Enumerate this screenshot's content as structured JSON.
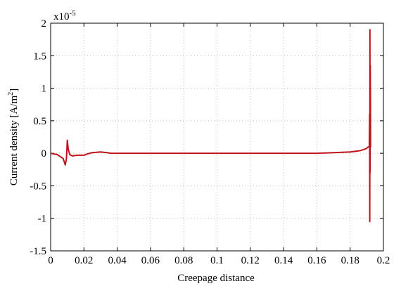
{
  "chart_data": {
    "type": "line",
    "title": "",
    "xlabel": "Creepage distance",
    "ylabel_main": "Current density [A/m",
    "ylabel_sup": "2",
    "ylabel_end": "]",
    "exponent_label": "x10",
    "exponent_sup": "-5",
    "xlim": [
      0,
      0.2
    ],
    "ylim": [
      -1.5,
      2
    ],
    "x_ticks": [
      0,
      0.02,
      0.04,
      0.06,
      0.08,
      0.1,
      0.12,
      0.14,
      0.16,
      0.18,
      0.2
    ],
    "x_tick_labels": [
      "0",
      "0.02",
      "0.04",
      "0.06",
      "0.08",
      "0.1",
      "0.12",
      "0.14",
      "0.16",
      "0.18",
      "0.2"
    ],
    "y_ticks": [
      -1.5,
      -1,
      -0.5,
      0,
      0.5,
      1,
      1.5,
      2
    ],
    "y_tick_labels": [
      "-1.5",
      "-1",
      "-0.5",
      "0",
      "0.5",
      "1",
      "1.5",
      "2"
    ],
    "grid": true,
    "line_color": "#c0141c",
    "series": [
      {
        "x": [
          0,
          0.004,
          0.0075,
          0.0088,
          0.0095,
          0.01,
          0.0106,
          0.0115,
          0.013,
          0.016,
          0.02,
          0.022,
          0.025,
          0.03,
          0.034,
          0.036,
          0.04,
          0.08,
          0.12,
          0.16,
          0.17,
          0.18,
          0.186,
          0.1895,
          0.1905,
          0.1912,
          0.1915,
          0.1917,
          0.1918,
          0.1919,
          0.192,
          0.1921,
          0.1922,
          0.1923,
          0.1924
        ],
        "y": [
          0,
          -0.02,
          -0.08,
          -0.18,
          -0.08,
          0.2,
          0.06,
          -0.02,
          -0.04,
          -0.03,
          -0.03,
          -0.01,
          0.01,
          0.02,
          0.01,
          0.0,
          0.0,
          0.0,
          0.0,
          0.0,
          0.01,
          0.02,
          0.04,
          0.07,
          0.09,
          0.1,
          0.1,
          0.6,
          -1.05,
          1.9,
          -0.3,
          1.35,
          0.8,
          0.1,
          0.1
        ]
      }
    ]
  }
}
